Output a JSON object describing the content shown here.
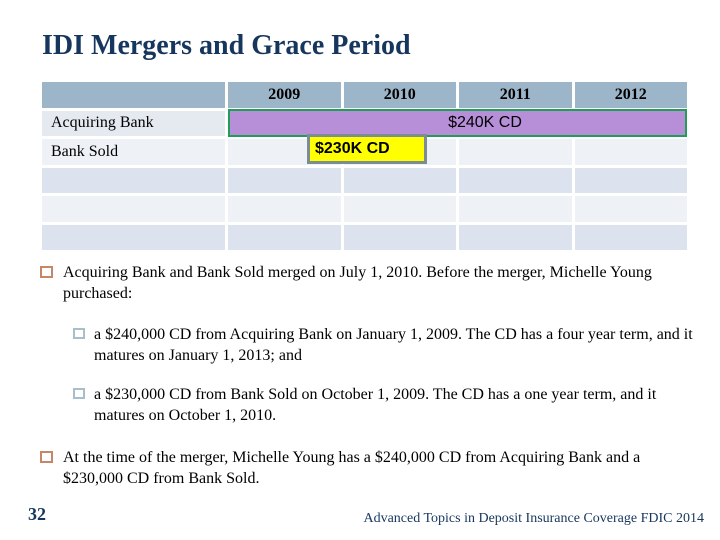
{
  "title": "IDI Mergers and Grace Period",
  "table": {
    "year_headers": [
      "2009",
      "2010",
      "2011",
      "2012"
    ],
    "row_labels": [
      "Acquiring Bank",
      "Bank Sold"
    ],
    "bars": {
      "cd240": {
        "label": "$240K CD",
        "fill": "#b78ed8",
        "border_color": "#219e56"
      },
      "cd230": {
        "label": "$230K CD",
        "fill": "#ffff00",
        "border_color": "#7b8c92"
      }
    }
  },
  "bullets": {
    "merger": "Acquiring Bank and Bank Sold merged on July 1, 2010. Before the merger, Michelle Young purchased:",
    "cd240_detail": "a $240,000 CD from Acquiring Bank on January 1, 2009.  The CD has a four year term, and it matures on January 1, 2013; and",
    "cd230_detail": "a $230,000 CD from Bank Sold on October 1, 2009. The CD has a one year term, and it matures on October 1, 2010.",
    "at_merger": "At the time of the merger, Michelle Young has a $240,000 CD from Acquiring Bank and a $230,000 CD from Bank Sold."
  },
  "footer": {
    "page_number": "32",
    "text": "Advanced Topics in Deposit Insurance Coverage FDIC 2014"
  },
  "colors": {
    "title_text": "#17365d",
    "header_row_bg": "#9db5c8",
    "footer_text": "#17365d"
  }
}
